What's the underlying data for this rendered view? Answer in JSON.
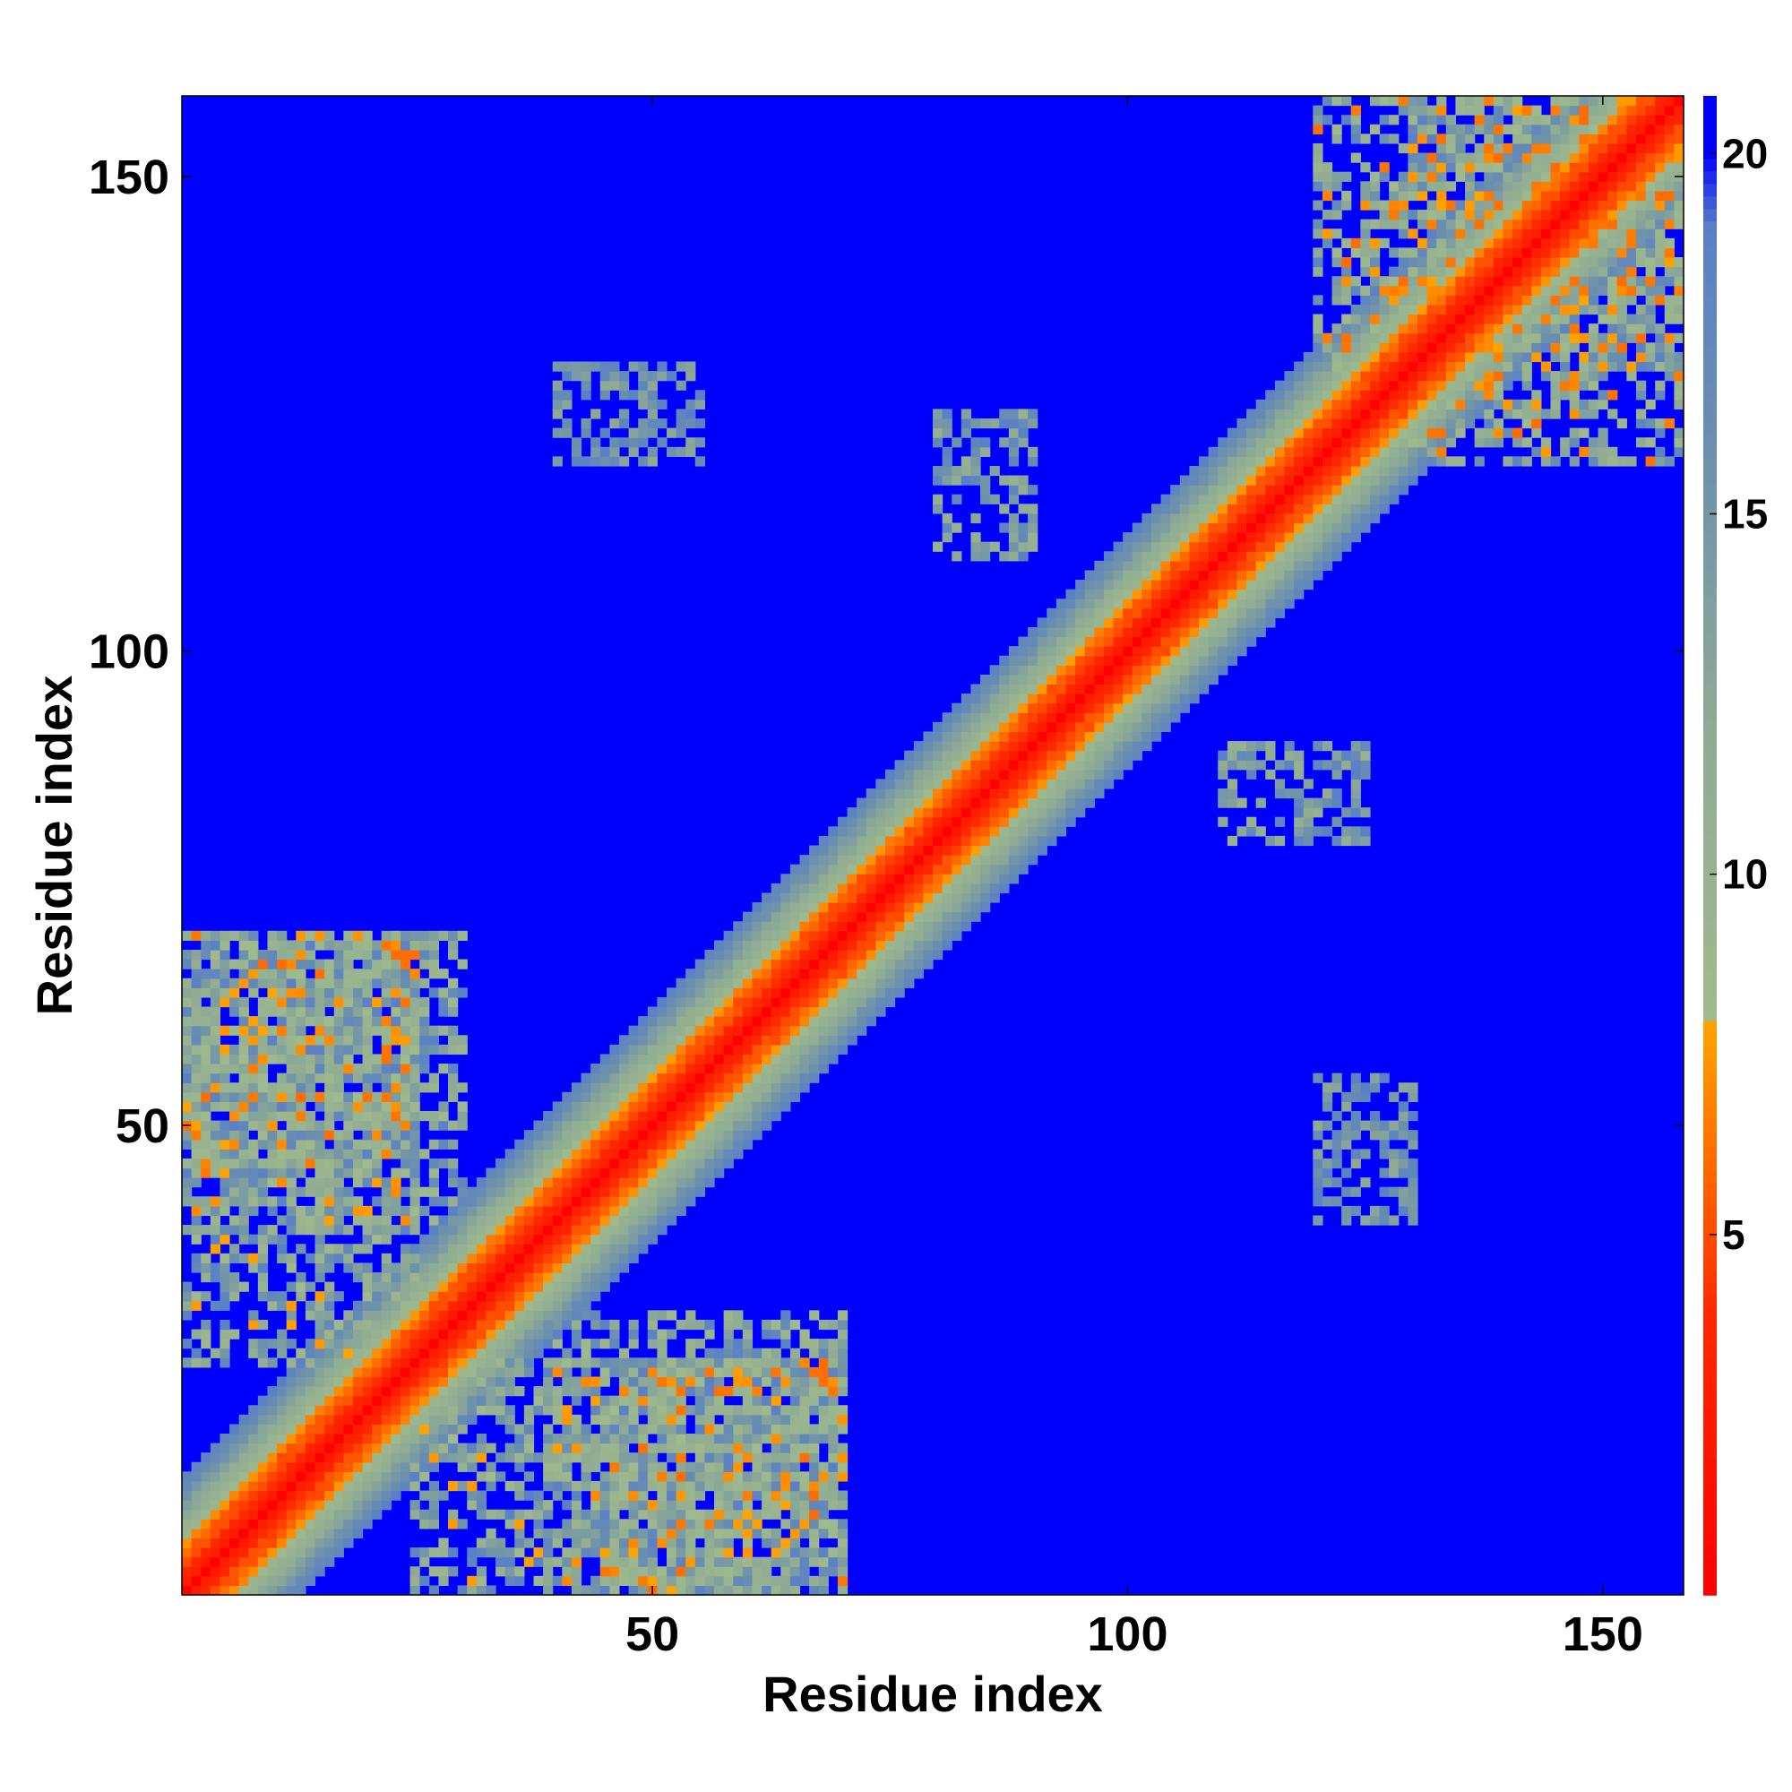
{
  "chart_data": {
    "type": "heatmap",
    "title": "",
    "xlabel": "Residue index",
    "ylabel": "Residue index",
    "n_residues": 158,
    "xlim": [
      1,
      158
    ],
    "ylim": [
      1,
      158
    ],
    "x_ticks": [
      50,
      100,
      150
    ],
    "y_ticks": [
      50,
      100,
      150
    ],
    "colorbar": {
      "range": [
        0,
        20.8
      ],
      "ticks": [
        5,
        10,
        15,
        20
      ],
      "stops": [
        {
          "value": 0,
          "color": "#ff0000"
        },
        {
          "value": 4,
          "color": "#ff2a00"
        },
        {
          "value": 6,
          "color": "#ff6a00"
        },
        {
          "value": 8,
          "color": "#ffa500"
        },
        {
          "value": 8.01,
          "color": "#9fba8c"
        },
        {
          "value": 12,
          "color": "#8fab94"
        },
        {
          "value": 16,
          "color": "#6b8fae"
        },
        {
          "value": 19,
          "color": "#5a7fc8"
        },
        {
          "value": 20,
          "color": "#0000ff"
        }
      ]
    },
    "cutoff": 20,
    "saturated_color": "#0000ff",
    "symmetric": true,
    "description_of_values": "Distance matrix: small values (red) along the diagonal, contact regions (yellow-green/steel blue) in clusters, values >= 20 shown saturated blue.",
    "contact_regions": [
      {
        "i_range": [
          1,
          30
        ],
        "j_range": [
          40,
          70
        ],
        "min_value": 8,
        "max_value": 19
      },
      {
        "i_range": [
          25,
          70
        ],
        "j_range": [
          1,
          25
        ],
        "min_value": 7,
        "max_value": 19
      },
      {
        "i_range": [
          1,
          25
        ],
        "j_range": [
          45,
          70
        ],
        "min_value": 6,
        "max_value": 19
      },
      {
        "i_range": [
          130,
          158
        ],
        "j_range": [
          120,
          158
        ],
        "min_value": 6,
        "max_value": 19
      },
      {
        "i_range": [
          110,
          125
        ],
        "j_range": [
          80,
          90
        ],
        "min_value": 10,
        "max_value": 19
      },
      {
        "i_range": [
          120,
          130
        ],
        "j_range": [
          40,
          55
        ],
        "min_value": 12,
        "max_value": 19
      }
    ]
  }
}
